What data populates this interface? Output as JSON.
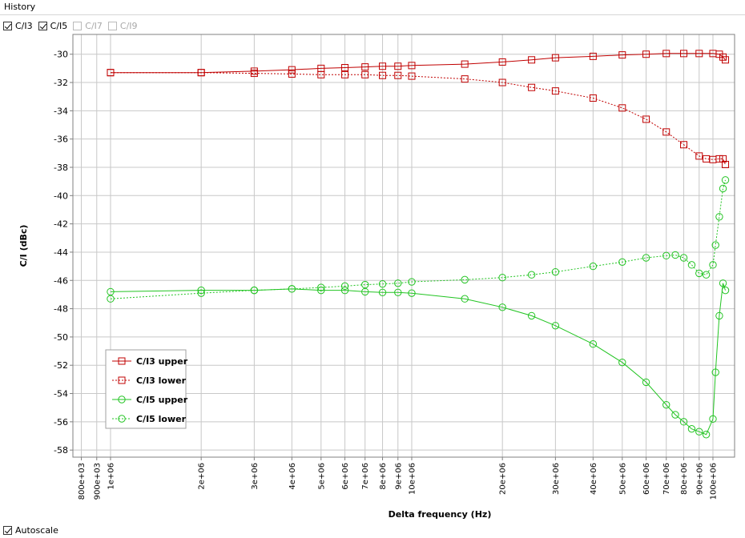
{
  "window": {
    "title": "History"
  },
  "toggles": [
    {
      "label": "C/I3",
      "checked": true,
      "enabled": true
    },
    {
      "label": "C/I5",
      "checked": true,
      "enabled": true
    },
    {
      "label": "C/I7",
      "checked": false,
      "enabled": false
    },
    {
      "label": "C/I9",
      "checked": false,
      "enabled": false
    }
  ],
  "autoscale": {
    "label": "Autoscale",
    "checked": true
  },
  "chart_data": {
    "type": "line",
    "xlabel": "Delta frequency (Hz)",
    "ylabel": "C/I (dBc)",
    "xscale": "log",
    "xlim": [
      750000,
      118000000
    ],
    "ylim": [
      -58.5,
      -28.6
    ],
    "xticks": [
      800000,
      900000,
      1000000,
      2000000,
      3000000,
      4000000,
      5000000,
      6000000,
      7000000,
      8000000,
      9000000,
      10000000,
      20000000,
      30000000,
      40000000,
      50000000,
      60000000,
      70000000,
      80000000,
      90000000,
      100000000
    ],
    "xtick_labels": [
      "800e+03",
      "900e+03",
      "1e+06",
      "2e+06",
      "3e+06",
      "4e+06",
      "5e+06",
      "6e+06",
      "7e+06",
      "8e+06",
      "9e+06",
      "10e+06",
      "20e+06",
      "30e+06",
      "40e+06",
      "50e+06",
      "60e+06",
      "70e+06",
      "80e+06",
      "90e+06",
      "100e+06"
    ],
    "yticks": [
      -30,
      -32,
      -34,
      -36,
      -38,
      -40,
      -42,
      -44,
      -46,
      -48,
      -50,
      -52,
      -54,
      -56,
      -58
    ],
    "ytick_labels": [
      "-30",
      "-32",
      "-34",
      "-36",
      "-38",
      "-40",
      "-42",
      "-44",
      "-46",
      "-48",
      "-50",
      "-52",
      "-54",
      "-56",
      "-58"
    ],
    "grid": true,
    "legend_position": "bottom-left",
    "series": [
      {
        "name": "C/I3 upper",
        "color": "#c00000",
        "marker": "square",
        "dash": false,
        "x": [
          1000000,
          2000000,
          3000000,
          4000000,
          5000000,
          6000000,
          7000000,
          8000000,
          9000000,
          10000000,
          15000000,
          20000000,
          25000000,
          30000000,
          40000000,
          50000000,
          60000000,
          70000000,
          80000000,
          90000000,
          100000000,
          105000000,
          108000000,
          110000000
        ],
        "y": [
          -31.3,
          -31.3,
          -31.2,
          -31.1,
          -31.0,
          -30.95,
          -30.9,
          -30.85,
          -30.85,
          -30.8,
          -30.7,
          -30.55,
          -30.4,
          -30.25,
          -30.15,
          -30.05,
          -30.0,
          -29.95,
          -29.95,
          -29.95,
          -29.95,
          -30.0,
          -30.2,
          -30.4
        ]
      },
      {
        "name": "C/I3 lower",
        "color": "#c00000",
        "marker": "square",
        "dash": true,
        "x": [
          1000000,
          2000000,
          3000000,
          4000000,
          5000000,
          6000000,
          7000000,
          8000000,
          9000000,
          10000000,
          15000000,
          20000000,
          25000000,
          30000000,
          40000000,
          50000000,
          60000000,
          70000000,
          80000000,
          90000000,
          95000000,
          100000000,
          105000000,
          108000000,
          110000000
        ],
        "y": [
          -31.3,
          -31.3,
          -31.35,
          -31.4,
          -31.45,
          -31.45,
          -31.45,
          -31.5,
          -31.5,
          -31.55,
          -31.75,
          -32.0,
          -32.35,
          -32.6,
          -33.1,
          -33.8,
          -34.6,
          -35.5,
          -36.4,
          -37.2,
          -37.4,
          -37.45,
          -37.4,
          -37.4,
          -37.8
        ]
      },
      {
        "name": "C/I5 upper",
        "color": "#22c422",
        "marker": "circle",
        "dash": false,
        "x": [
          1000000,
          2000000,
          3000000,
          4000000,
          5000000,
          6000000,
          7000000,
          8000000,
          9000000,
          10000000,
          15000000,
          20000000,
          25000000,
          30000000,
          40000000,
          50000000,
          60000000,
          70000000,
          75000000,
          80000000,
          85000000,
          90000000,
          95000000,
          100000000,
          102000000,
          105000000,
          108000000,
          110000000
        ],
        "y": [
          -46.8,
          -46.7,
          -46.7,
          -46.6,
          -46.7,
          -46.7,
          -46.8,
          -46.85,
          -46.85,
          -46.9,
          -47.3,
          -47.9,
          -48.5,
          -49.2,
          -50.5,
          -51.8,
          -53.2,
          -54.8,
          -55.5,
          -56.0,
          -56.5,
          -56.7,
          -56.9,
          -55.8,
          -52.5,
          -48.5,
          -46.2,
          -46.7
        ]
      },
      {
        "name": "C/I5 lower",
        "color": "#22c422",
        "marker": "circle",
        "dash": true,
        "x": [
          1000000,
          2000000,
          3000000,
          4000000,
          5000000,
          6000000,
          7000000,
          8000000,
          9000000,
          10000000,
          15000000,
          20000000,
          25000000,
          30000000,
          40000000,
          50000000,
          60000000,
          70000000,
          75000000,
          80000000,
          85000000,
          90000000,
          95000000,
          100000000,
          102000000,
          105000000,
          108000000,
          110000000
        ],
        "y": [
          -47.3,
          -46.9,
          -46.7,
          -46.6,
          -46.5,
          -46.4,
          -46.3,
          -46.25,
          -46.2,
          -46.1,
          -45.95,
          -45.8,
          -45.6,
          -45.4,
          -45.0,
          -44.7,
          -44.4,
          -44.25,
          -44.2,
          -44.4,
          -44.9,
          -45.5,
          -45.6,
          -44.9,
          -43.5,
          -41.5,
          -39.5,
          -38.9
        ]
      }
    ]
  }
}
